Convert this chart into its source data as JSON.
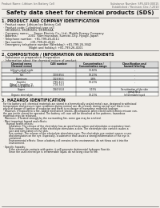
{
  "bg_color": "#f0ede8",
  "header_top_left": "Product Name: Lithium Ion Battery Cell",
  "header_top_right_1": "Substance Number: SPS-049-00015",
  "header_top_right_2": "Established / Revision: Dec.7,2010",
  "title": "Safety data sheet for chemical products (SDS)",
  "s1_title": "1. PRODUCT AND COMPANY IDENTIFICATION",
  "s1_lines": [
    "  · Product name: Lithium Ion Battery Cell",
    "  · Product code: Cylindrical-type cell",
    "    SR18650U, SR18650G, SR18650A",
    "  · Company name:      Sanyo Electric Co., Ltd., Mobile Energy Company",
    "  · Address:            2001  Kamimunakan, Sumoto-City, Hyogo, Japan",
    "  · Telephone number:  +81-799-26-4111",
    "  · Fax number:        +81-799-26-4121",
    "  · Emergency telephone number (Weekday): +81-799-26-3842",
    "                              (Night and holiday): +81-799-26-4101"
  ],
  "s2_title": "2. COMPOSITION / INFORMATION ON INGREDIENTS",
  "s2_line1": "  · Substance or preparation: Preparation",
  "s2_line2": "  · Information about the chemical nature of product:",
  "th": [
    "Chemical name\n(General name)",
    "CAS number",
    "Concentration /\nConcentration range",
    "Classification and\nhazard labeling"
  ],
  "rows": [
    [
      "Lithium cobalt oxide\n(LiMn-Co3)(Co3)",
      "-",
      "30-60%",
      "-"
    ],
    [
      "Iron",
      "7439-89-6",
      "10-20%",
      "-"
    ],
    [
      "Aluminum",
      "7429-90-5",
      "3-8%",
      "-"
    ],
    [
      "Graphite\n(Metal in graphite-1)\n(All-No in graphite-1)",
      "7782-42-5\n7704-34-0",
      "10-20%",
      "-"
    ],
    [
      "Copper",
      "7440-50-8",
      "5-15%",
      "Sensitization of the skin\ngroup No.2"
    ],
    [
      "Organic electrolyte",
      "-",
      "10-20%",
      "Inflammable liquid"
    ]
  ],
  "s3_title": "3. HAZARDS IDENTIFICATION",
  "s3_para1": "  For the battery cell, chemical materials are stored in a hermetically sealed metal case, designed to withstand\n  temperature and pressure-type conditions during normal use. As a result, during normal use, there is no\n  physical danger of ignition or explosion and there is no danger of hazardous materials leakage.\n    However, if exposed to a fire, added mechanical shocks, decomposed, when electrical/electronic misuse can,\n  the gas inside cannot be operated. The battery cell case will be breached at fire patterns, hazardous\n  materials may be released.\n    Moreover, if heated strongly by the surrounding fire, some gas may be emitted.",
  "s3_bullet1": "  · Most important hazard and effects:",
  "s3_human": "      Human health effects:",
  "s3_inh": "         Inhalation: The release of the electrolyte has an anesthesia action and stimulates a respiratory tract.",
  "s3_skin1": "         Skin contact: The release of the electrolyte stimulates a skin. The electrolyte skin contact causes a",
  "s3_skin2": "         sore and stimulation on the skin.",
  "s3_eye1": "         Eye contact: The release of the electrolyte stimulates eyes. The electrolyte eye contact causes a sore",
  "s3_eye2": "         and stimulation on the eye. Especially, a substance that causes a strong inflammation of the eye is",
  "s3_eye3": "         contained.",
  "s3_env1": "         Environmental effects: Since a battery cell remains in the environment, do not throw out it into the",
  "s3_env2": "         environment.",
  "s3_bullet2": "  · Specific hazards:",
  "s3_sp1": "         If the electrolyte contacts with water, it will generate detrimental hydrogen fluoride.",
  "s3_sp2": "         Since the used electrolyte is inflammable liquid, do not bring close to fire."
}
